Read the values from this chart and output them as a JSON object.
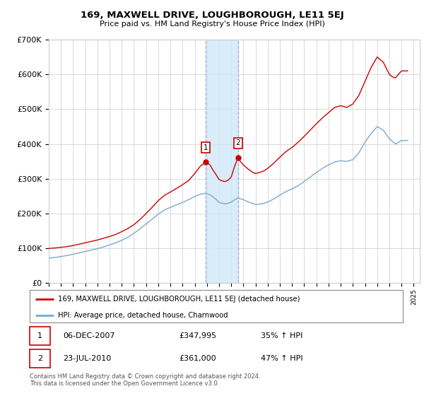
{
  "title": "169, MAXWELL DRIVE, LOUGHBOROUGH, LE11 5EJ",
  "subtitle": "Price paid vs. HM Land Registry's House Price Index (HPI)",
  "red_label": "169, MAXWELL DRIVE, LOUGHBOROUGH, LE11 5EJ (detached house)",
  "blue_label": "HPI: Average price, detached house, Charnwood",
  "annotation1_date": "06-DEC-2007",
  "annotation1_price": "£347,995",
  "annotation1_hpi": "35% ↑ HPI",
  "annotation2_date": "23-JUL-2010",
  "annotation2_price": "£361,000",
  "annotation2_hpi": "47% ↑ HPI",
  "footer": "Contains HM Land Registry data © Crown copyright and database right 2024.\nThis data is licensed under the Open Government Licence v3.0.",
  "vline1_x": 2007.92,
  "vline2_x": 2010.55,
  "ylim": [
    0,
    700000
  ],
  "xlim": [
    1995,
    2025.5
  ],
  "background_color": "#ffffff",
  "grid_color": "#cccccc",
  "red_color": "#cc0000",
  "blue_color": "#7aaacc",
  "shade_color": "#d0e8f8",
  "vline_color": "#aaaacc",
  "red_line_x": [
    1995.0,
    1995.25,
    1995.5,
    1995.75,
    1996.0,
    1996.25,
    1996.5,
    1996.75,
    1997.0,
    1997.25,
    1997.5,
    1997.75,
    1998.0,
    1998.25,
    1998.5,
    1998.75,
    1999.0,
    1999.25,
    1999.5,
    1999.75,
    2000.0,
    2000.25,
    2000.5,
    2000.75,
    2001.0,
    2001.25,
    2001.5,
    2001.75,
    2002.0,
    2002.25,
    2002.5,
    2002.75,
    2003.0,
    2003.25,
    2003.5,
    2003.75,
    2004.0,
    2004.25,
    2004.5,
    2004.75,
    2005.0,
    2005.25,
    2005.5,
    2005.75,
    2006.0,
    2006.25,
    2006.5,
    2006.75,
    2007.0,
    2007.25,
    2007.5,
    2007.75,
    2007.92,
    2008.25,
    2008.5,
    2008.75,
    2009.0,
    2009.25,
    2009.5,
    2009.75,
    2010.0,
    2010.25,
    2010.55,
    2010.75,
    2011.0,
    2011.25,
    2011.5,
    2011.75,
    2012.0,
    2012.25,
    2012.5,
    2012.75,
    2013.0,
    2013.25,
    2013.5,
    2013.75,
    2014.0,
    2014.25,
    2014.5,
    2014.75,
    2015.0,
    2015.25,
    2015.5,
    2015.75,
    2016.0,
    2016.25,
    2016.5,
    2016.75,
    2017.0,
    2017.25,
    2017.5,
    2017.75,
    2018.0,
    2018.25,
    2018.5,
    2018.75,
    2019.0,
    2019.25,
    2019.5,
    2019.75,
    2020.0,
    2020.25,
    2020.5,
    2020.75,
    2021.0,
    2021.25,
    2021.5,
    2021.75,
    2022.0,
    2022.25,
    2022.5,
    2022.75,
    2023.0,
    2023.25,
    2023.5,
    2023.75,
    2024.0,
    2024.25,
    2024.5
  ],
  "red_line_y": [
    100000,
    100500,
    101000,
    102000,
    103000,
    104000,
    105000,
    106500,
    108000,
    110000,
    112000,
    114000,
    116000,
    118000,
    120000,
    122000,
    124000,
    126500,
    129000,
    131500,
    134000,
    137000,
    140000,
    144000,
    148000,
    152500,
    157000,
    162500,
    168000,
    175500,
    183000,
    191500,
    200000,
    209000,
    218000,
    227500,
    237000,
    244500,
    252000,
    257000,
    262000,
    267000,
    272000,
    277500,
    283000,
    289000,
    295000,
    305000,
    315000,
    326500,
    338000,
    343000,
    347995,
    340000,
    325000,
    312000,
    298000,
    294000,
    292000,
    296000,
    305000,
    333000,
    361000,
    350000,
    340000,
    332000,
    325000,
    319000,
    315000,
    317500,
    320000,
    324000,
    330000,
    337500,
    345000,
    353500,
    362000,
    370000,
    378000,
    384000,
    390000,
    397500,
    405000,
    413500,
    422000,
    431000,
    440000,
    449000,
    458000,
    466500,
    475000,
    482500,
    490000,
    497500,
    505000,
    507500,
    510000,
    507500,
    505000,
    510000,
    515000,
    527500,
    540000,
    560000,
    580000,
    600000,
    620000,
    635000,
    650000,
    642500,
    635000,
    617500,
    600000,
    593000,
    590000,
    600000,
    610000,
    610000,
    610000
  ],
  "blue_line_x": [
    1995.0,
    1995.25,
    1995.5,
    1995.75,
    1996.0,
    1996.25,
    1996.5,
    1996.75,
    1997.0,
    1997.25,
    1997.5,
    1997.75,
    1998.0,
    1998.25,
    1998.5,
    1998.75,
    1999.0,
    1999.25,
    1999.5,
    1999.75,
    2000.0,
    2000.25,
    2000.5,
    2000.75,
    2001.0,
    2001.25,
    2001.5,
    2001.75,
    2002.0,
    2002.25,
    2002.5,
    2002.75,
    2003.0,
    2003.25,
    2003.5,
    2003.75,
    2004.0,
    2004.25,
    2004.5,
    2004.75,
    2005.0,
    2005.25,
    2005.5,
    2005.75,
    2006.0,
    2006.25,
    2006.5,
    2006.75,
    2007.0,
    2007.25,
    2007.5,
    2007.75,
    2007.92,
    2008.25,
    2008.5,
    2008.75,
    2009.0,
    2009.25,
    2009.5,
    2009.75,
    2010.0,
    2010.25,
    2010.55,
    2010.75,
    2011.0,
    2011.25,
    2011.5,
    2011.75,
    2012.0,
    2012.25,
    2012.5,
    2012.75,
    2013.0,
    2013.25,
    2013.5,
    2013.75,
    2014.0,
    2014.25,
    2014.5,
    2014.75,
    2015.0,
    2015.25,
    2015.5,
    2015.75,
    2016.0,
    2016.25,
    2016.5,
    2016.75,
    2017.0,
    2017.25,
    2017.5,
    2017.75,
    2018.0,
    2018.25,
    2018.5,
    2018.75,
    2019.0,
    2019.25,
    2019.5,
    2019.75,
    2020.0,
    2020.25,
    2020.5,
    2020.75,
    2021.0,
    2021.25,
    2021.5,
    2021.75,
    2022.0,
    2022.25,
    2022.5,
    2022.75,
    2023.0,
    2023.25,
    2023.5,
    2023.75,
    2024.0,
    2024.25,
    2024.5
  ],
  "blue_line_y": [
    72000,
    73000,
    74000,
    75000,
    76500,
    78000,
    79500,
    81000,
    83000,
    85000,
    87000,
    89000,
    91000,
    93000,
    95000,
    97000,
    99000,
    101500,
    104000,
    107000,
    110000,
    113000,
    116000,
    119500,
    123000,
    127500,
    132000,
    137500,
    143000,
    149500,
    156000,
    163000,
    170000,
    177000,
    184000,
    191000,
    198000,
    204000,
    210000,
    214000,
    218000,
    221500,
    225000,
    228500,
    232000,
    236000,
    240000,
    244500,
    249000,
    252500,
    256000,
    257000,
    258000,
    254000,
    248000,
    241000,
    232000,
    229500,
    228000,
    230000,
    233000,
    239000,
    245000,
    242500,
    240000,
    236000,
    232000,
    229000,
    226000,
    227000,
    228000,
    230500,
    233000,
    237500,
    242000,
    247500,
    253000,
    258000,
    263000,
    267000,
    271000,
    275500,
    280000,
    286000,
    292000,
    298500,
    305000,
    311500,
    318000,
    324000,
    330000,
    335000,
    340000,
    344000,
    348000,
    350000,
    352000,
    351000,
    350000,
    352500,
    355000,
    365000,
    375000,
    390000,
    405000,
    417500,
    430000,
    440000,
    450000,
    445000,
    440000,
    427500,
    415000,
    407500,
    400000,
    405000,
    410000,
    410000,
    410000
  ]
}
